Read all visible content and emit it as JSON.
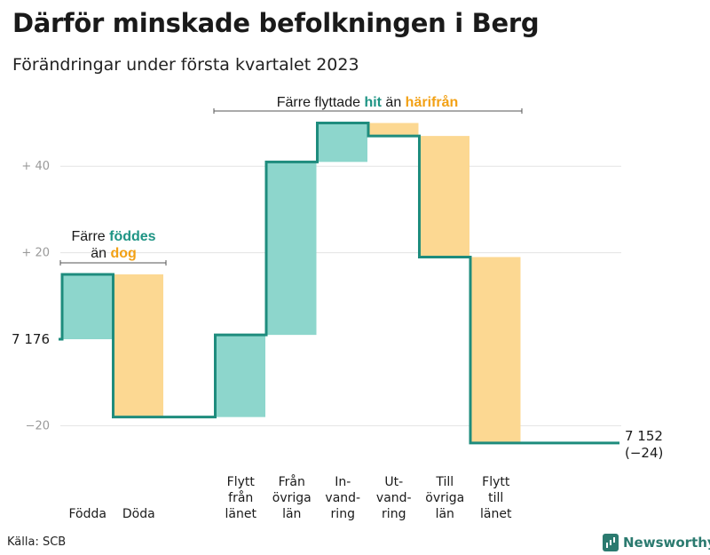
{
  "chart_data": {
    "type": "waterfall",
    "title": "Därför minskade befolkningen i Berg",
    "subtitle": "Förändringar under första kvartalet 2023",
    "start_label": "7 176",
    "end_label": "7 152",
    "end_change_label": "(−24)",
    "baseline_value": 7176,
    "y_ticks": [
      {
        "value": 40,
        "label": "+ 40"
      },
      {
        "value": 20,
        "label": "+ 20"
      },
      {
        "value": -20,
        "label": "−20"
      }
    ],
    "ylim": [
      -24,
      55
    ],
    "categories": [
      {
        "key": "fodda",
        "lines": [
          "Födda"
        ],
        "change": 15,
        "direction": "in"
      },
      {
        "key": "doda",
        "lines": [
          "Döda"
        ],
        "change": -33,
        "direction": "out"
      },
      {
        "key": "gap",
        "lines": [],
        "change": 0,
        "direction": "none"
      },
      {
        "key": "flytt_fran_lanet",
        "lines": [
          "Flytt",
          "från",
          "länet"
        ],
        "change": 19,
        "direction": "in"
      },
      {
        "key": "fran_ovriga_lan",
        "lines": [
          "Från",
          "övriga",
          "län"
        ],
        "change": 40,
        "direction": "in"
      },
      {
        "key": "invandring",
        "lines": [
          "In-",
          "vand-",
          "ring"
        ],
        "change": 9,
        "direction": "in"
      },
      {
        "key": "utvandring",
        "lines": [
          "Ut-",
          "vand-",
          "ring"
        ],
        "change": -3,
        "direction": "out"
      },
      {
        "key": "till_ovriga_lan",
        "lines": [
          "Till",
          "övriga",
          "län"
        ],
        "change": -28,
        "direction": "out"
      },
      {
        "key": "flytt_till_lanet",
        "lines": [
          "Flytt",
          "till",
          "länet"
        ],
        "change": -43,
        "direction": "out"
      }
    ],
    "annotations": [
      {
        "key": "born",
        "parts": [
          {
            "text": "Färre ",
            "style": "plain"
          },
          {
            "text": "föddes",
            "style": "in"
          },
          {
            "text": "än ",
            "style": "plain",
            "newline": true
          },
          {
            "text": "dog",
            "style": "out"
          }
        ]
      },
      {
        "key": "moved",
        "parts": [
          {
            "text": "Färre flyttade ",
            "style": "plain"
          },
          {
            "text": "hit",
            "style": "in"
          },
          {
            "text": " än ",
            "style": "plain"
          },
          {
            "text": "härifrån",
            "style": "out"
          }
        ]
      }
    ],
    "colors": {
      "in": "#8dd6cc",
      "out": "#fcd892",
      "line": "#1e8c7d",
      "in_text": "#1e9484",
      "out_text": "#f2a116",
      "grid": "#e3e3e3"
    }
  },
  "source": "Källa: SCB",
  "brand": "Newsworthy"
}
